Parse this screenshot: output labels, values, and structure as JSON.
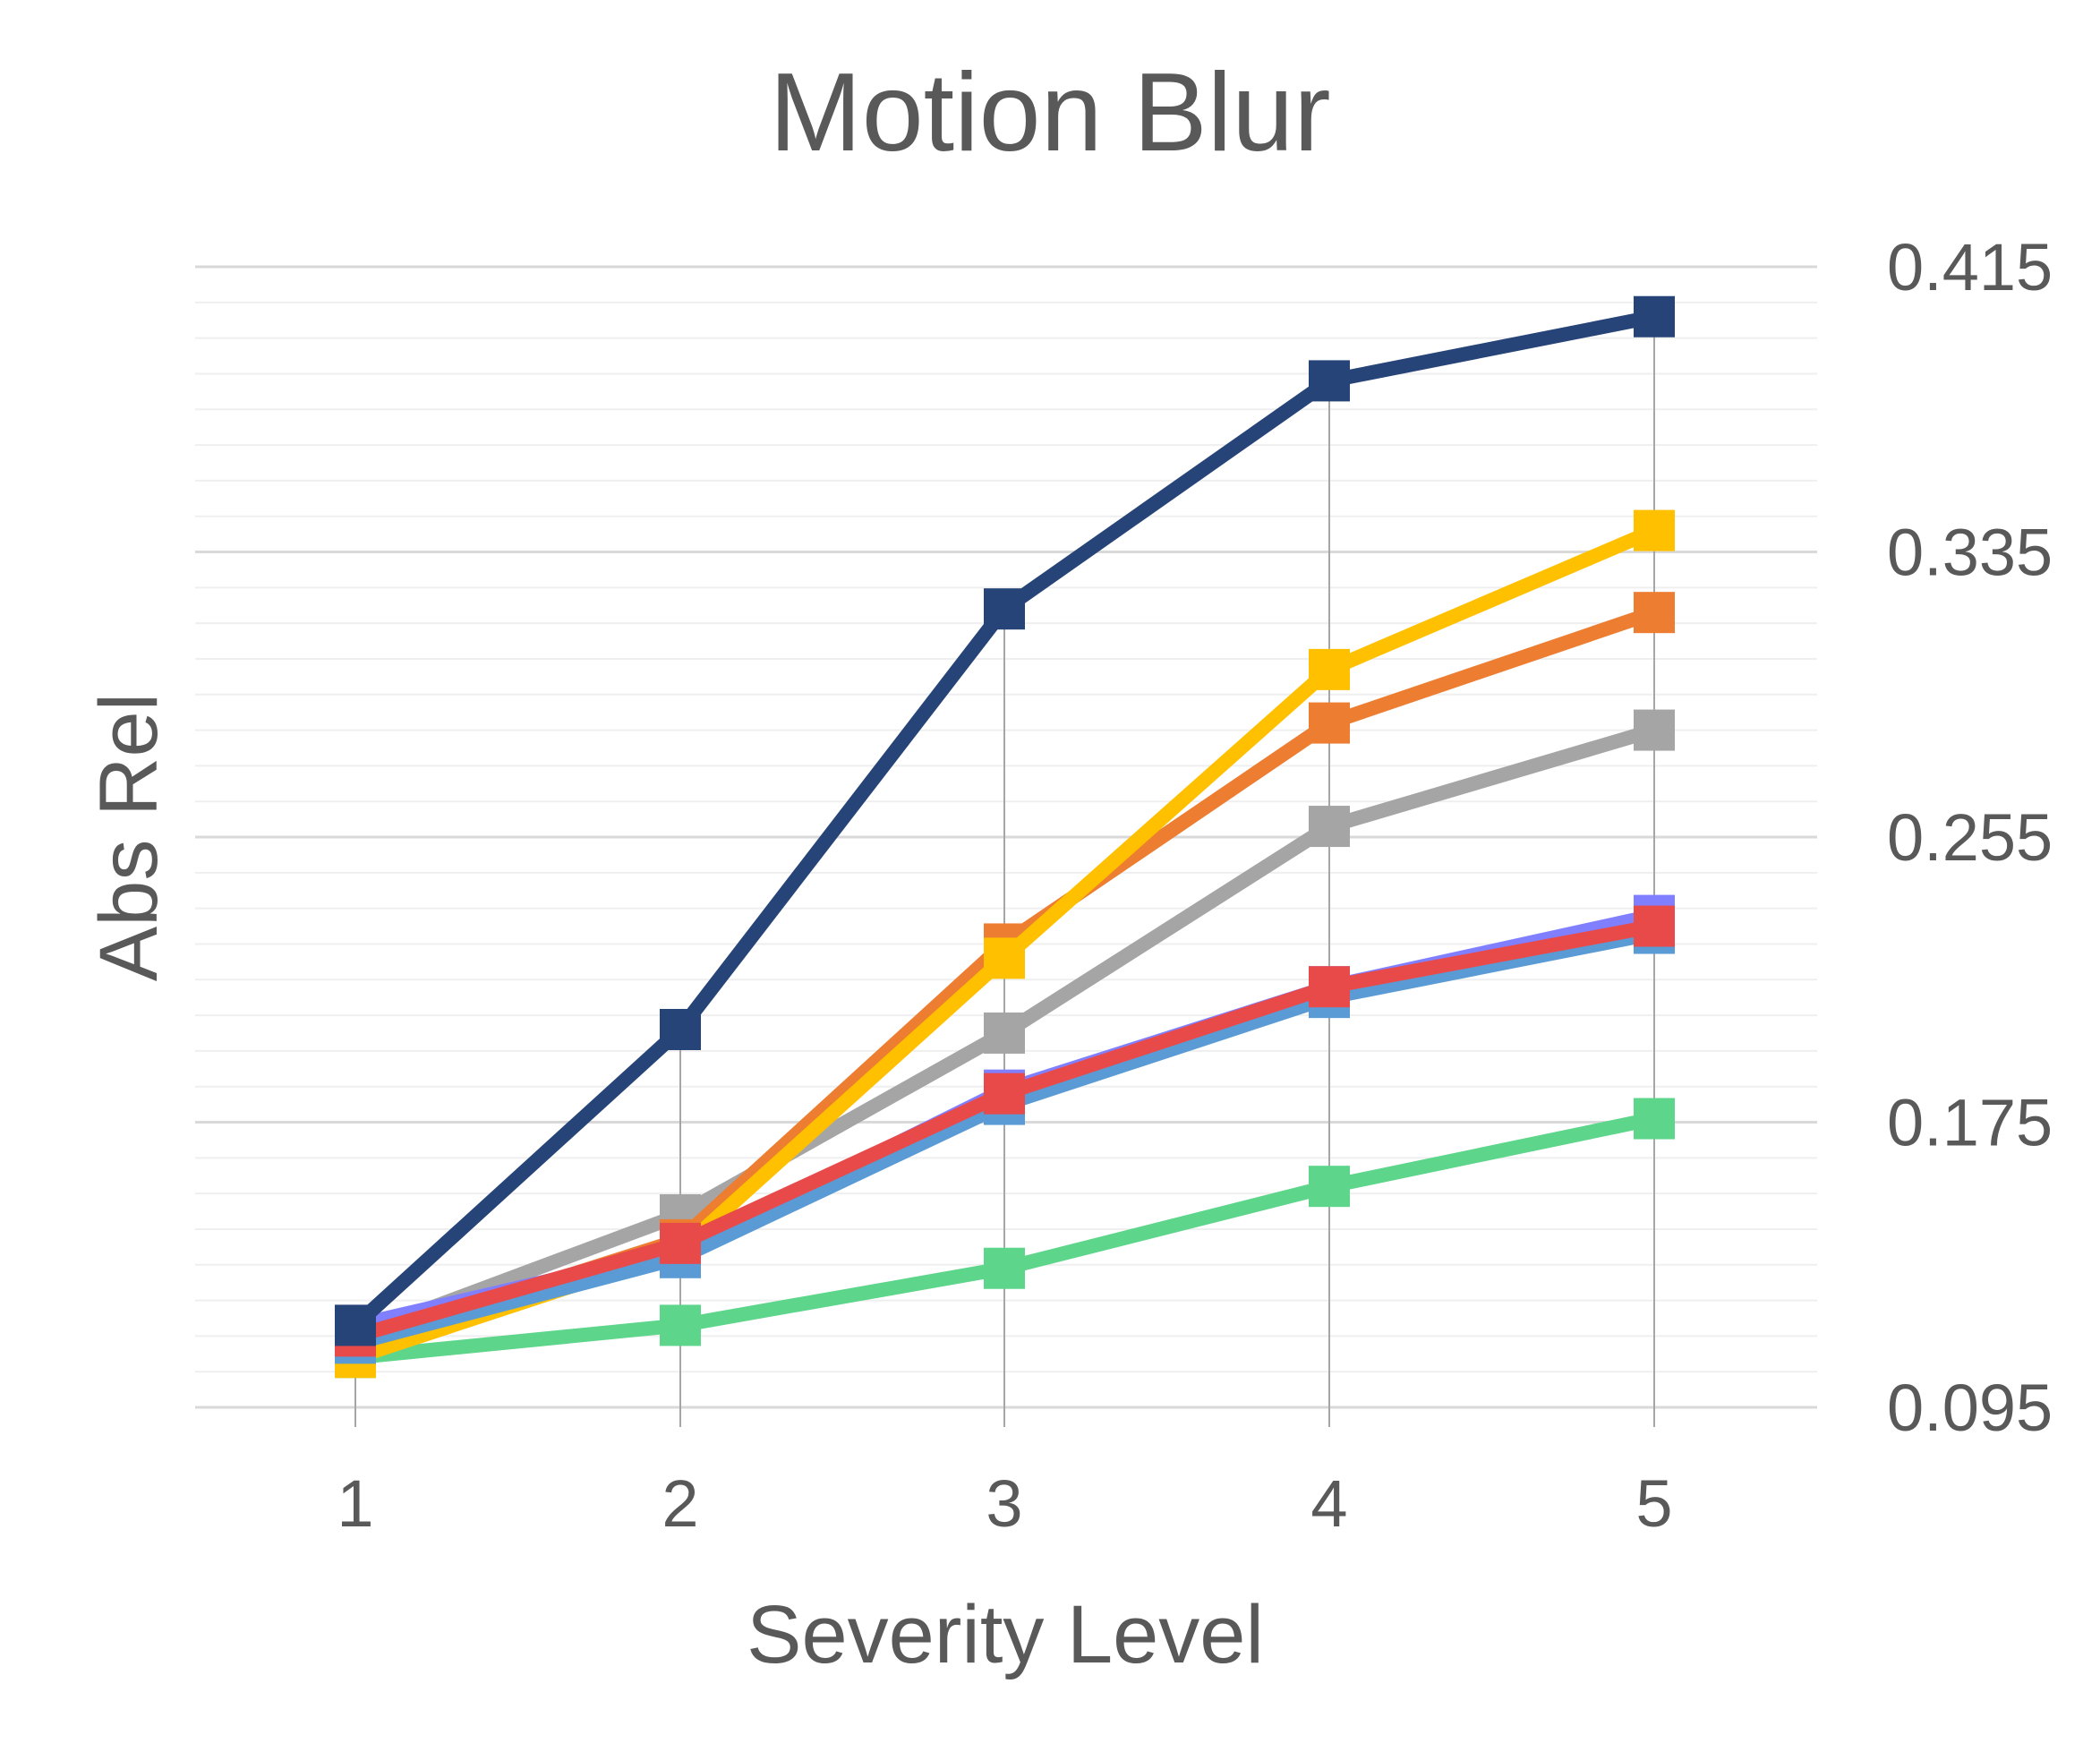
{
  "chart_data": {
    "type": "line",
    "title": "Motion Blur",
    "xlabel": "Severity Level",
    "ylabel": "Abs Rel",
    "categories": [
      "1",
      "2",
      "3",
      "4",
      "5"
    ],
    "ylim": [
      0.095,
      0.415
    ],
    "y_ticks": [
      "0.415",
      "0.335",
      "0.255",
      "0.175",
      "0.095"
    ],
    "y_axis_position": "right",
    "grid": true,
    "series": [
      {
        "color": "#264478",
        "values": [
          0.118,
          0.201,
          0.319,
          0.383,
          0.401
        ]
      },
      {
        "color": "#ED7D31",
        "values": [
          0.113,
          0.142,
          0.225,
          0.287,
          0.318
        ]
      },
      {
        "color": "#FFC000",
        "values": [
          0.109,
          0.139,
          0.221,
          0.302,
          0.341
        ]
      },
      {
        "color": "#A5A5A5",
        "values": [
          0.115,
          0.149,
          0.2,
          0.258,
          0.285
        ]
      },
      {
        "color": "#7F7FFF",
        "values": [
          0.118,
          0.139,
          0.184,
          0.213,
          0.233
        ]
      },
      {
        "color": "#5B9BD5",
        "values": [
          0.113,
          0.137,
          0.18,
          0.21,
          0.228
        ]
      },
      {
        "color": "#E84A4A",
        "values": [
          0.115,
          0.141,
          0.183,
          0.213,
          0.23
        ]
      },
      {
        "color": "#5DD58A",
        "values": [
          0.109,
          0.118,
          0.134,
          0.157,
          0.176
        ]
      }
    ]
  }
}
